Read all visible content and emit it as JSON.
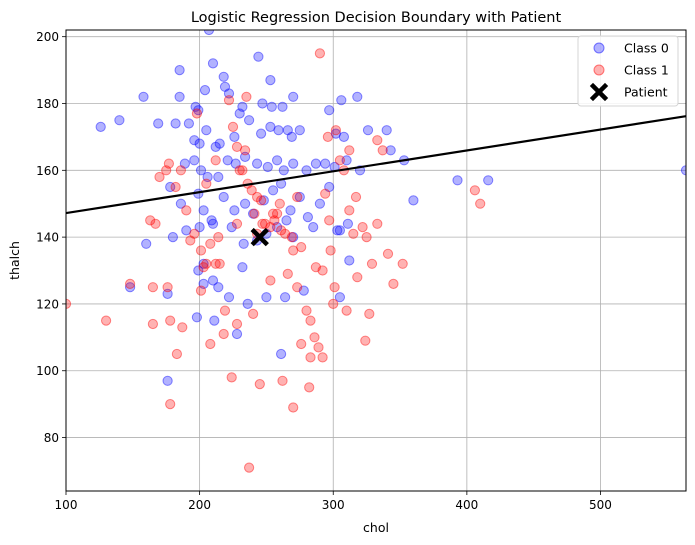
{
  "chart_data": {
    "type": "scatter",
    "title": "Logistic Regression Decision Boundary with Patient",
    "xlabel": "chol",
    "ylabel": "thalch",
    "xlim": [
      100,
      564
    ],
    "ylim": [
      64,
      202
    ],
    "xticks": [
      "100",
      "200",
      "300",
      "400",
      "500"
    ],
    "yticks": [
      "80",
      "100",
      "120",
      "140",
      "160",
      "180",
      "200"
    ],
    "xtick_values": [
      100,
      200,
      300,
      400,
      500
    ],
    "ytick_values": [
      80,
      100,
      120,
      140,
      160,
      180,
      200
    ],
    "grid": true,
    "legend_position": "top-right",
    "colors": {
      "class0": "#0000ff",
      "class1": "#ff0000",
      "boundary": "#000000",
      "patient": "#000000",
      "grid": "#b0b0b0"
    },
    "decision_boundary": {
      "x": [
        100,
        564
      ],
      "y": [
        147.2,
        176.2
      ]
    },
    "patient": {
      "name": "Patient",
      "x": 245,
      "y": 140
    },
    "series": [
      {
        "name": "Class 0",
        "points": [
          [
            207,
            202
          ],
          [
            244,
            194
          ],
          [
            185,
            190
          ],
          [
            210,
            192
          ],
          [
            218,
            188
          ],
          [
            253,
            187
          ],
          [
            219,
            185
          ],
          [
            222,
            183
          ],
          [
            185,
            182
          ],
          [
            158,
            182
          ],
          [
            318,
            182
          ],
          [
            140,
            175
          ],
          [
            126,
            173
          ],
          [
            169,
            174
          ],
          [
            182,
            174
          ],
          [
            192,
            174
          ],
          [
            197,
            179
          ],
          [
            199,
            178
          ],
          [
            204,
            184
          ],
          [
            247,
            180
          ],
          [
            254,
            179
          ],
          [
            232,
            179
          ],
          [
            262,
            179
          ],
          [
            270,
            182
          ],
          [
            297,
            178
          ],
          [
            306,
            181
          ],
          [
            200,
            168
          ],
          [
            196,
            169
          ],
          [
            205,
            172
          ],
          [
            212,
            167
          ],
          [
            215,
            168
          ],
          [
            226,
            170
          ],
          [
            230,
            177
          ],
          [
            237,
            175
          ],
          [
            246,
            171
          ],
          [
            253,
            173
          ],
          [
            259,
            172
          ],
          [
            266,
            172
          ],
          [
            269,
            170
          ],
          [
            275,
            172
          ],
          [
            302,
            171
          ],
          [
            308,
            170
          ],
          [
            326,
            172
          ],
          [
            340,
            172
          ],
          [
            189,
            162
          ],
          [
            196,
            163
          ],
          [
            201,
            160
          ],
          [
            206,
            158
          ],
          [
            214,
            158
          ],
          [
            221,
            163
          ],
          [
            227,
            162
          ],
          [
            234,
            164
          ],
          [
            243,
            162
          ],
          [
            251,
            161
          ],
          [
            258,
            163
          ],
          [
            263,
            160
          ],
          [
            270,
            162
          ],
          [
            280,
            160
          ],
          [
            287,
            162
          ],
          [
            294,
            162
          ],
          [
            301,
            161
          ],
          [
            310,
            163
          ],
          [
            320,
            160
          ],
          [
            343,
            166
          ],
          [
            353,
            163
          ],
          [
            360,
            151
          ],
          [
            393,
            157
          ],
          [
            416,
            157
          ],
          [
            564,
            160
          ],
          [
            178,
            155
          ],
          [
            186,
            150
          ],
          [
            199,
            153
          ],
          [
            203,
            148
          ],
          [
            209,
            145
          ],
          [
            218,
            152
          ],
          [
            226,
            148
          ],
          [
            234,
            150
          ],
          [
            240,
            147
          ],
          [
            248,
            151
          ],
          [
            255,
            154
          ],
          [
            261,
            156
          ],
          [
            268,
            148
          ],
          [
            275,
            152
          ],
          [
            281,
            146
          ],
          [
            290,
            150
          ],
          [
            297,
            155
          ],
          [
            303,
            142
          ],
          [
            311,
            144
          ],
          [
            180,
            140
          ],
          [
            190,
            142
          ],
          [
            200,
            143
          ],
          [
            210,
            144
          ],
          [
            224,
            143
          ],
          [
            233,
            138
          ],
          [
            243,
            139
          ],
          [
            250,
            141
          ],
          [
            258,
            143
          ],
          [
            265,
            145
          ],
          [
            270,
            140
          ],
          [
            285,
            143
          ],
          [
            305,
            142
          ],
          [
            160,
            138
          ],
          [
            176,
            123
          ],
          [
            198,
            116
          ],
          [
            199,
            130
          ],
          [
            203,
            132
          ],
          [
            210,
            127
          ],
          [
            214,
            125
          ],
          [
            222,
            122
          ],
          [
            228,
            111
          ],
          [
            232,
            131
          ],
          [
            236,
            120
          ],
          [
            250,
            122
          ],
          [
            264,
            122
          ],
          [
            278,
            124
          ],
          [
            305,
            122
          ],
          [
            312,
            133
          ],
          [
            148,
            125
          ],
          [
            176,
            97
          ],
          [
            203,
            126
          ],
          [
            211,
            115
          ],
          [
            261,
            105
          ]
        ]
      },
      {
        "name": "Class 1",
        "points": [
          [
            100,
            120
          ],
          [
            130,
            115
          ],
          [
            148,
            126
          ],
          [
            163,
            145
          ],
          [
            167,
            144
          ],
          [
            170,
            158
          ],
          [
            175,
            160
          ],
          [
            177,
            162
          ],
          [
            165,
            125
          ],
          [
            176,
            125
          ],
          [
            165,
            114
          ],
          [
            178,
            115
          ],
          [
            187,
            113
          ],
          [
            183,
            105
          ],
          [
            178,
            90
          ],
          [
            182,
            155
          ],
          [
            190,
            148
          ],
          [
            193,
            139
          ],
          [
            196,
            141
          ],
          [
            201,
            136
          ],
          [
            203,
            131
          ],
          [
            205,
            132
          ],
          [
            208,
            138
          ],
          [
            212,
            132
          ],
          [
            215,
            132
          ],
          [
            219,
            118
          ],
          [
            222,
            181
          ],
          [
            225,
            173
          ],
          [
            228,
            167
          ],
          [
            232,
            160
          ],
          [
            234,
            166
          ],
          [
            236,
            156
          ],
          [
            239,
            154
          ],
          [
            241,
            147
          ],
          [
            243,
            152
          ],
          [
            246,
            151
          ],
          [
            249,
            144
          ],
          [
            253,
            143
          ],
          [
            255,
            147
          ],
          [
            258,
            147
          ],
          [
            261,
            142
          ],
          [
            264,
            141
          ],
          [
            266,
            129
          ],
          [
            269,
            140
          ],
          [
            273,
            125
          ],
          [
            276,
            137
          ],
          [
            280,
            118
          ],
          [
            283,
            115
          ],
          [
            286,
            110
          ],
          [
            289,
            107
          ],
          [
            292,
            104
          ],
          [
            294,
            153
          ],
          [
            298,
            136
          ],
          [
            301,
            125
          ],
          [
            305,
            163
          ],
          [
            308,
            160
          ],
          [
            312,
            148
          ],
          [
            315,
            141
          ],
          [
            318,
            128
          ],
          [
            322,
            143
          ],
          [
            325,
            140
          ],
          [
            329,
            132
          ],
          [
            333,
            144
          ],
          [
            337,
            166
          ],
          [
            341,
            135
          ],
          [
            345,
            126
          ],
          [
            352,
            132
          ],
          [
            406,
            154
          ],
          [
            410,
            150
          ],
          [
            224,
            98
          ],
          [
            245,
            96
          ],
          [
            262,
            97
          ],
          [
            270,
            89
          ],
          [
            282,
            95
          ],
          [
            300,
            120
          ],
          [
            237,
            71
          ],
          [
            290,
            195
          ],
          [
            198,
            177
          ],
          [
            212,
            163
          ],
          [
            228,
            144
          ],
          [
            243,
            141
          ],
          [
            256,
            145
          ],
          [
            270,
            136
          ],
          [
            296,
            170
          ],
          [
            302,
            172
          ],
          [
            317,
            152
          ],
          [
            333,
            169
          ],
          [
            208,
            108
          ],
          [
            228,
            114
          ],
          [
            218,
            111
          ],
          [
            201,
            124
          ],
          [
            240,
            117
          ],
          [
            253,
            127
          ],
          [
            276,
            108
          ],
          [
            283,
            104
          ],
          [
            310,
            118
          ],
          [
            327,
            117
          ],
          [
            324,
            109
          ],
          [
            312,
            166
          ],
          [
            287,
            131
          ],
          [
            297,
            145
          ],
          [
            230,
            160
          ],
          [
            260,
            150
          ],
          [
            235,
            182
          ],
          [
            205,
            156
          ],
          [
            186,
            160
          ],
          [
            214,
            140
          ],
          [
            247,
            144
          ],
          [
            273,
            152
          ],
          [
            292,
            130
          ]
        ]
      }
    ]
  },
  "legend": {
    "class0_label": "Class 0",
    "class1_label": "Class 1",
    "patient_label": "Patient"
  }
}
